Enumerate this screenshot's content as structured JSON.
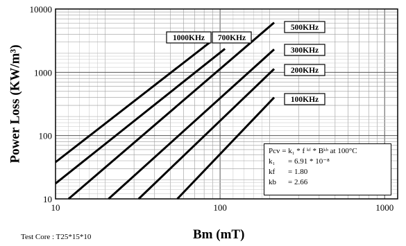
{
  "chart_data": {
    "type": "line",
    "title": "",
    "xlabel": "Bm (mT)",
    "ylabel": "Power Loss (KW/m³)",
    "x_scale": "log",
    "y_scale": "log",
    "xlim": [
      10,
      1200
    ],
    "ylim": [
      10,
      10000
    ],
    "x_ticks": [
      "10",
      "100",
      "1000"
    ],
    "y_ticks": [
      "10",
      "100",
      "1000",
      "10000"
    ],
    "grid": true,
    "series": [
      {
        "name": "1000KHz",
        "x": [
          10,
          87
        ],
        "y": [
          38,
          3000
        ]
      },
      {
        "name": "700KHz",
        "x": [
          10,
          107
        ],
        "y": [
          17.5,
          2350
        ]
      },
      {
        "name": "500KHz",
        "x": [
          12,
          213
        ],
        "y": [
          10,
          6100
        ]
      },
      {
        "name": "300KHz",
        "x": [
          21,
          213
        ],
        "y": [
          10,
          2300
        ]
      },
      {
        "name": "200KHz",
        "x": [
          32,
          213
        ],
        "y": [
          10,
          1130
        ]
      },
      {
        "name": "100KHz",
        "x": [
          55,
          213
        ],
        "y": [
          10,
          400
        ]
      }
    ],
    "annotations": {
      "formula_line1": "Pcv = k₁ * f ᵏᶠ * Bᵏᵇ at 100°C",
      "k1_label": "k₁",
      "k1_value": "= 6.91 * 10⁻⁸",
      "kf_label": "kf",
      "kf_value": "= 1.80",
      "kb_label": "kb",
      "kb_value": "= 2.66"
    },
    "footnote": "Test Core : T25*15*10"
  }
}
